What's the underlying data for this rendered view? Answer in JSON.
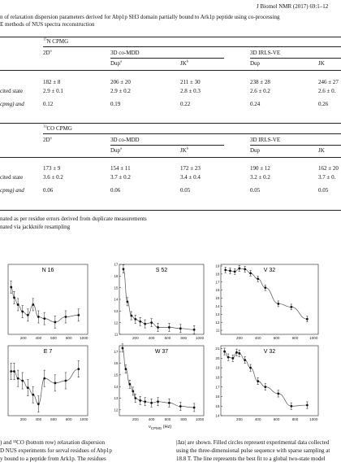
{
  "header": {
    "running": "J Biomol NMR (2017) 69:1–12"
  },
  "table": {
    "caption_line1": "n of relaxation dispersion parameters derived for Abp1p SH3 domain partially bound to Ark1p peptide using co-processing",
    "caption_line2": "E methods of NUS spectra reconstruction",
    "sections": [
      {
        "label_pre": "15",
        "label_post": "N CPMG",
        "col_2d": "2D",
        "col_2d_sup": "a",
        "group_a": "3D co-MDD",
        "group_b": "3D IRLS-VE",
        "sub_dup": "Dup",
        "sub_dup_sup": "a",
        "sub_jk": "JK",
        "sub_jk_sup": "b",
        "sub_dup2": "Dup",
        "sub_jk2": "JK",
        "rows": [
          {
            "label": "",
            "vals": [
              "182 ± 8",
              "206 ± 20",
              "211 ± 30",
              "238 ± 28",
              "246 ± 27"
            ]
          },
          {
            "label": "cited state",
            "vals": [
              "2.9 ± 0.1",
              "2.9 ± 0.2",
              "2.8 ± 0.3",
              "2.6 ± 0.2",
              "2.6 ± 0."
            ]
          },
          {
            "label": "cpmg) and",
            "vals": [
              "0.12",
              "0.19",
              "0.22",
              "0.24",
              "0.26"
            ]
          }
        ]
      },
      {
        "label_pre": "13",
        "label_post": "CO CPMG",
        "col_2d": "2D",
        "col_2d_sup": "a",
        "group_a": "3D co-MDD",
        "group_b": "3D IRLS-VE",
        "sub_dup": "Dup",
        "sub_dup_sup": "a",
        "sub_jk": "JK",
        "sub_jk_sup": "b",
        "sub_dup2": "Dup",
        "sub_jk2": "JK",
        "rows": [
          {
            "label": "",
            "vals": [
              "173 ± 9",
              "154 ± 11",
              "172 ± 23",
              "190 ± 12",
              "162 ± 20"
            ]
          },
          {
            "label": "cited state",
            "vals": [
              "3.6 ± 0.2",
              "3.7 ± 0.2",
              "3.4 ± 0.4",
              "3.2 ± 0.2",
              "3.7 ± 0."
            ]
          },
          {
            "label": "cpmg) and",
            "vals": [
              "0.06",
              "0.06",
              "0.05",
              "0.05",
              "0.05"
            ]
          }
        ]
      }
    ],
    "footnote_a": "nated as per residue errors derived from duplicate measurements",
    "footnote_b": "nated via jackknife resampling"
  },
  "panels": [
    {
      "title": "N 16",
      "yticks": [],
      "xticks": [
        "200",
        "400",
        "600",
        "800",
        "1000"
      ],
      "points": [
        [
          40,
          14.2
        ],
        [
          80,
          13.6
        ],
        [
          130,
          13.2
        ],
        [
          190,
          12.8
        ],
        [
          260,
          12.6
        ],
        [
          330,
          13.2
        ],
        [
          400,
          12.5
        ],
        [
          480,
          12.4
        ],
        [
          620,
          12.2
        ],
        [
          760,
          12.5
        ],
        [
          930,
          12.6
        ]
      ]
    },
    {
      "title": "S 52",
      "yticks": [
        "11",
        "12",
        "13",
        "14",
        "15",
        "16",
        "17"
      ],
      "xticks": [
        "200",
        "400",
        "600",
        "800",
        "1000"
      ],
      "points": [
        [
          50,
          16.6
        ],
        [
          100,
          13.8
        ],
        [
          150,
          12.6
        ],
        [
          200,
          12.3
        ],
        [
          260,
          12.1
        ],
        [
          320,
          11.9
        ],
        [
          400,
          12.0
        ],
        [
          480,
          11.6
        ],
        [
          620,
          11.6
        ],
        [
          760,
          11.5
        ],
        [
          930,
          11.4
        ]
      ]
    },
    {
      "title": "V 32",
      "yticks": [
        "10",
        "11",
        "12",
        "13",
        "14",
        "15",
        "16",
        "17",
        "18",
        "19"
      ],
      "xticks": [
        "200",
        "400",
        "600",
        "800",
        "1000"
      ],
      "points": [
        [
          50,
          18.5
        ],
        [
          100,
          18.4
        ],
        [
          150,
          18.3
        ],
        [
          200,
          18.7
        ],
        [
          260,
          18.6
        ],
        [
          320,
          18.1
        ],
        [
          400,
          17.4
        ],
        [
          480,
          16.3
        ],
        [
          620,
          14.3
        ],
        [
          760,
          13.9
        ],
        [
          930,
          12.4
        ]
      ]
    },
    {
      "title": "E 7",
      "yticks": [],
      "xticks": [
        "200",
        "400",
        "600",
        "800",
        "1000"
      ],
      "points": [
        [
          40,
          12.9
        ],
        [
          80,
          12.9
        ],
        [
          130,
          12.6
        ],
        [
          190,
          12.5
        ],
        [
          260,
          12.2
        ],
        [
          330,
          11.9
        ],
        [
          400,
          11.5
        ],
        [
          480,
          12.6
        ],
        [
          620,
          12.4
        ],
        [
          760,
          12.5
        ],
        [
          930,
          13.0
        ]
      ]
    },
    {
      "title": "W 37",
      "yticks": [
        "12",
        "13",
        "14",
        "15",
        "16",
        "17"
      ],
      "xticks": [
        "200",
        "400",
        "600",
        "800",
        "1000"
      ],
      "points": [
        [
          40,
          17.3
        ],
        [
          80,
          15.5
        ],
        [
          130,
          14.2
        ],
        [
          170,
          13.6
        ],
        [
          200,
          13.0
        ],
        [
          260,
          12.8
        ],
        [
          320,
          12.7
        ],
        [
          400,
          12.6
        ],
        [
          480,
          12.7
        ],
        [
          620,
          12.6
        ],
        [
          760,
          12.3
        ],
        [
          930,
          12.2
        ]
      ]
    },
    {
      "title": "V 32",
      "yticks": [
        "14",
        "15",
        "16",
        "17",
        "18",
        "19",
        "20",
        "21"
      ],
      "xticks": [
        "200",
        "400",
        "600",
        "800",
        "1000"
      ],
      "points": [
        [
          40,
          20.7
        ],
        [
          80,
          20.1
        ],
        [
          130,
          20.0
        ],
        [
          170,
          20.6
        ],
        [
          200,
          20.5
        ],
        [
          260,
          19.8
        ],
        [
          320,
          19.0
        ],
        [
          400,
          17.6
        ],
        [
          480,
          17.0
        ],
        [
          620,
          16.3
        ],
        [
          760,
          15.0
        ],
        [
          930,
          15.1
        ]
      ]
    }
  ],
  "xaxis_label": "ν",
  "xaxis_label_sub": "CPMG",
  "xaxis_label_unit": " (Hz)",
  "caption": {
    "left_l1": ") and ¹³CO (bottom row) relaxation dispersion",
    "left_l2": "D NUS experiments for serval residues of Abp1p",
    "left_l3": "y bound to a peptide from Ark1p. The residues",
    "right_l1": "|Δϖ| are shown. Filled circles represent experimental data collected",
    "right_l2": "using the three-dimensional pulse sequence with sparse sampling at",
    "right_l3": "18.8 T. The line represents the best fit to a global two-state model"
  }
}
